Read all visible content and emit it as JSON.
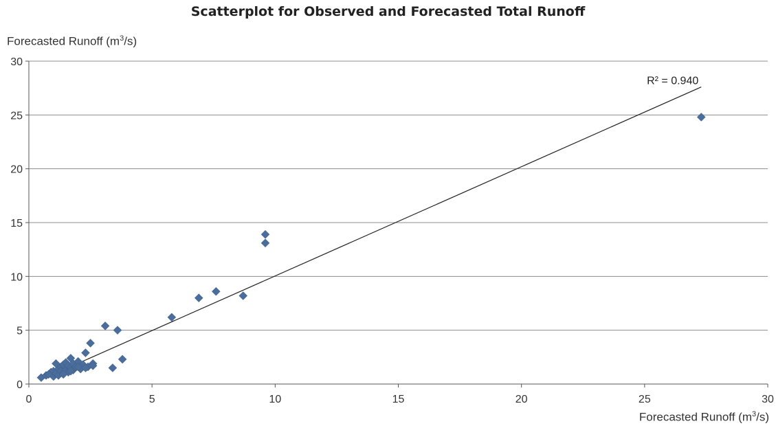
{
  "chart_data": {
    "type": "scatter",
    "title": "Scatterplot for Observed and Forecasted Total Runoff",
    "ylabel_main": "Forecasted Runoff (m",
    "ylabel_sup": "3",
    "ylabel_end": "/s)",
    "xlabel_main": "Forecasted Runoff (m",
    "xlabel_sup": "3",
    "xlabel_end": "/s)",
    "xlim": [
      0,
      30
    ],
    "ylim": [
      0,
      30
    ],
    "xticks": [
      "0",
      "5",
      "10",
      "15",
      "20",
      "25",
      "30"
    ],
    "yticks": [
      "0",
      "5",
      "10",
      "15",
      "20",
      "25",
      "30"
    ],
    "grid": "horizontal",
    "point_color": "#4a6d9c",
    "r2_label": "R² = 0.940",
    "trendline": {
      "x": [
        0.5,
        27.3
      ],
      "y": [
        0.4,
        27.6
      ]
    },
    "series": [
      {
        "x": [
          0.5,
          0.7,
          0.8,
          0.9,
          1.0,
          1.0,
          1.1,
          1.2,
          1.2,
          1.3,
          1.3,
          1.4,
          1.4,
          1.5,
          1.5,
          1.6,
          1.6,
          1.7,
          1.7,
          1.8,
          1.8,
          1.9,
          2.0,
          2.1,
          2.2,
          2.3,
          2.4,
          2.5,
          2.6,
          0.8,
          1.1,
          1.4,
          1.7,
          2.0,
          2.3,
          2.6,
          3.1,
          3.4,
          3.6,
          3.8,
          5.8,
          6.9,
          7.6,
          8.7,
          9.6,
          9.6,
          27.3
        ],
        "y": [
          0.6,
          0.8,
          0.9,
          1.1,
          0.7,
          1.2,
          1.0,
          1.4,
          0.8,
          1.6,
          1.2,
          1.8,
          1.0,
          2.0,
          1.3,
          1.7,
          1.1,
          2.4,
          1.5,
          1.9,
          1.3,
          1.6,
          2.1,
          1.4,
          1.8,
          2.9,
          1.6,
          3.8,
          1.9,
          0.9,
          1.9,
          0.9,
          1.2,
          1.6,
          1.5,
          1.7,
          5.4,
          1.5,
          5.0,
          2.3,
          6.2,
          8.0,
          8.6,
          8.2,
          13.1,
          13.9,
          24.8
        ]
      }
    ]
  }
}
